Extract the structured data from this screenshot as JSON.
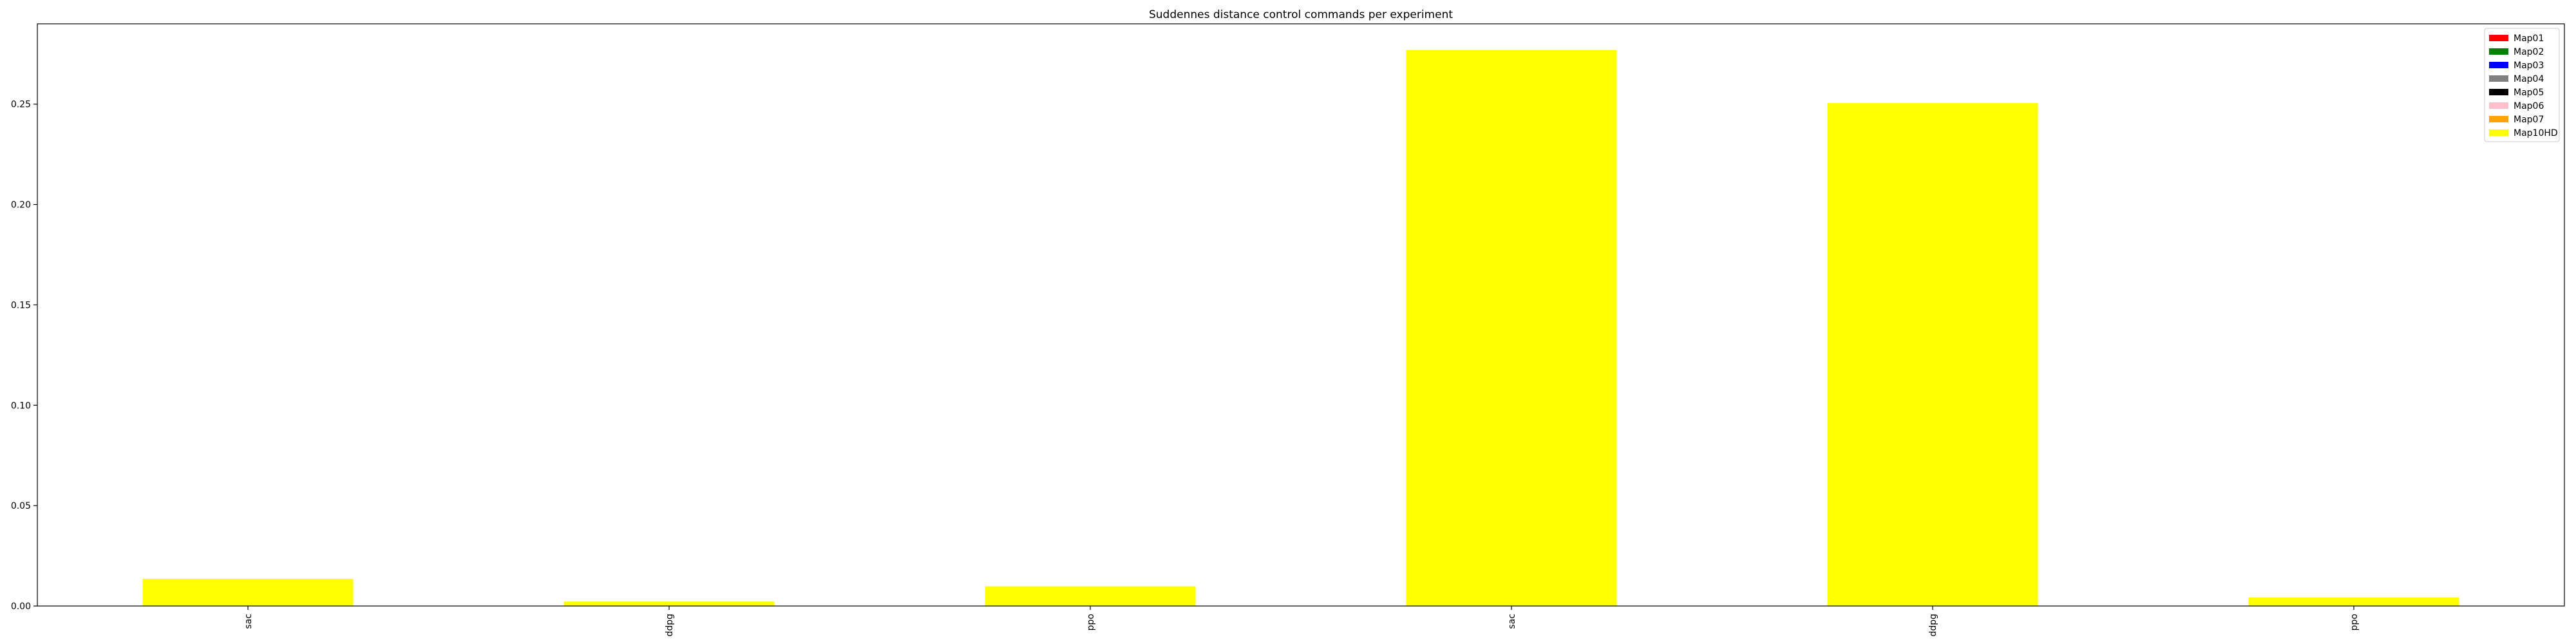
{
  "chart_data": {
    "type": "bar",
    "title": "Suddennes distance control commands per experiment",
    "xlabel": "",
    "ylabel": "",
    "categories": [
      "sac",
      "ddpg",
      "ppo",
      "sac",
      "ddpg",
      "ppo"
    ],
    "series": [
      {
        "name": "Map10HD",
        "color": "#ffff00",
        "values": [
          0.0135,
          0.0022,
          0.0098,
          0.277,
          0.2505,
          0.0043
        ]
      }
    ],
    "ylim": [
      0,
      0.29
    ],
    "yticks": [
      0.0,
      0.05,
      0.1,
      0.15,
      0.2,
      0.25
    ],
    "ytick_labels": [
      "0.00",
      "0.05",
      "0.10",
      "0.15",
      "0.20",
      "0.25"
    ],
    "grid": false,
    "legend_position": "upper right",
    "legend": [
      {
        "label": "Map01",
        "color": "#ff0000"
      },
      {
        "label": "Map02",
        "color": "#008000"
      },
      {
        "label": "Map03",
        "color": "#0000ff"
      },
      {
        "label": "Map04",
        "color": "#808080"
      },
      {
        "label": "Map05",
        "color": "#000000"
      },
      {
        "label": "Map06",
        "color": "#ffc0cb"
      },
      {
        "label": "Map07",
        "color": "#ffa500"
      },
      {
        "label": "Map10HD",
        "color": "#ffff00"
      }
    ]
  }
}
